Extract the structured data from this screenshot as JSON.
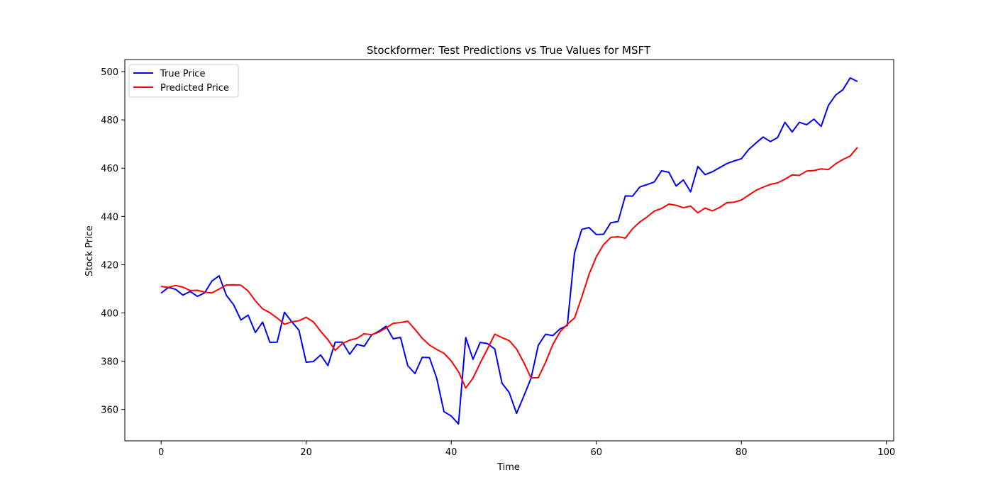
{
  "chart_data": {
    "type": "line",
    "title": "Stockformer: Test Predictions vs True Values for MSFT",
    "xlabel": "Time",
    "ylabel": "Stock Price",
    "xlim": [
      -5,
      101
    ],
    "ylim": [
      347,
      505
    ],
    "xticks": [
      0,
      20,
      40,
      60,
      80,
      100
    ],
    "yticks": [
      360,
      380,
      400,
      420,
      440,
      460,
      480,
      500
    ],
    "grid": false,
    "legend_position": "top-left",
    "colors": {
      "True Price": "#0000ff",
      "Predicted Price": "#ff0000"
    },
    "series": [
      {
        "name": "True Price",
        "values": [
          408.2,
          410.6,
          409.8,
          407.4,
          408.9,
          406.9,
          408.3,
          413.2,
          415.4,
          407.3,
          403.4,
          397.1,
          399.1,
          391.9,
          396.2,
          387.8,
          387.9,
          400.3,
          396.4,
          392.9,
          379.6,
          379.9,
          382.6,
          378.2,
          387.9,
          387.9,
          382.9,
          387.0,
          386.2,
          390.8,
          392.4,
          394.5,
          389.3,
          389.9,
          378.2,
          374.9,
          381.6,
          381.5,
          372.9,
          359.1,
          357.3,
          354.0,
          389.8,
          380.8,
          387.8,
          387.3,
          385.1,
          370.9,
          367.0,
          358.4,
          365.5,
          372.9,
          386.6,
          391.2,
          390.6,
          393.4,
          394.8,
          424.9,
          434.6,
          435.4,
          432.5,
          432.6,
          437.4,
          437.9,
          448.5,
          448.4,
          452.2,
          453.2,
          454.3,
          458.9,
          458.3,
          452.6,
          455.1,
          450.2,
          460.7,
          457.3,
          458.5,
          460.2,
          461.9,
          463.0,
          463.9,
          467.7,
          470.4,
          472.9,
          471.0,
          472.7,
          479.0,
          475.0,
          479.0,
          478.0,
          480.3,
          477.3,
          486.0,
          490.3,
          492.5,
          497.4,
          495.9
        ]
      },
      {
        "name": "Predicted Price",
        "values": [
          411.0,
          410.6,
          411.4,
          410.7,
          409.3,
          409.4,
          408.6,
          408.3,
          409.9,
          411.6,
          411.7,
          411.5,
          409.1,
          405.0,
          401.7,
          400.1,
          397.9,
          395.3,
          396.3,
          396.8,
          398.2,
          396.3,
          392.4,
          388.9,
          384.5,
          387.4,
          388.7,
          389.5,
          391.4,
          391.0,
          392.0,
          393.8,
          395.7,
          396.0,
          396.6,
          393.2,
          389.5,
          386.7,
          384.9,
          383.3,
          380.1,
          375.7,
          368.9,
          373.0,
          379.3,
          385.1,
          391.2,
          389.8,
          388.5,
          385.1,
          379.5,
          373.1,
          373.2,
          379.5,
          386.9,
          392.2,
          395.3,
          397.9,
          406.6,
          416.0,
          423.3,
          428.3,
          431.3,
          431.6,
          431.0,
          434.9,
          437.7,
          439.8,
          442.2,
          443.3,
          445.1,
          444.6,
          443.6,
          444.3,
          441.5,
          443.5,
          442.3,
          443.7,
          445.7,
          445.9,
          446.8,
          448.8,
          450.8,
          452.1,
          453.3,
          453.9,
          455.4,
          457.2,
          457.0,
          458.8,
          459.0,
          459.7,
          459.4,
          461.8,
          463.6,
          465.0,
          468.6
        ]
      }
    ]
  }
}
